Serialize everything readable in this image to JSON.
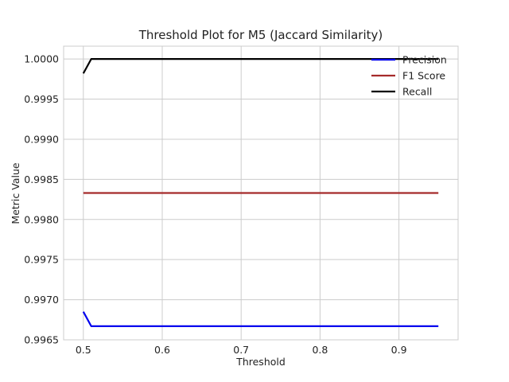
{
  "chart_data": {
    "type": "line",
    "title": "Threshold Plot for M5 (Jaccard Similarity)",
    "xlabel": "Threshold",
    "ylabel": "Metric Value",
    "xlim": [
      0.475,
      0.975
    ],
    "ylim": [
      0.9965,
      1.00016
    ],
    "xticks": [
      0.5,
      0.6,
      0.7,
      0.8,
      0.9
    ],
    "xtick_labels": [
      "0.5",
      "0.6",
      "0.7",
      "0.8",
      "0.9"
    ],
    "yticks": [
      0.9965,
      0.997,
      0.9975,
      0.998,
      0.9985,
      0.999,
      0.9995,
      1.0
    ],
    "ytick_labels": [
      "0.9965",
      "0.9970",
      "0.9975",
      "0.9980",
      "0.9985",
      "0.9990",
      "0.9995",
      "1.0000"
    ],
    "grid": true,
    "legend_position": "top-right",
    "series": [
      {
        "name": "Precision",
        "color": "#0000ee",
        "x": [
          0.5,
          0.51,
          0.95
        ],
        "y": [
          0.99685,
          0.99667,
          0.99667
        ]
      },
      {
        "name": "F1 Score",
        "color": "#a52a2a",
        "x": [
          0.5,
          0.95
        ],
        "y": [
          0.99833,
          0.99833
        ]
      },
      {
        "name": "Recall",
        "color": "#000000",
        "x": [
          0.5,
          0.51,
          0.95
        ],
        "y": [
          0.99982,
          1.0,
          1.0
        ]
      }
    ]
  }
}
